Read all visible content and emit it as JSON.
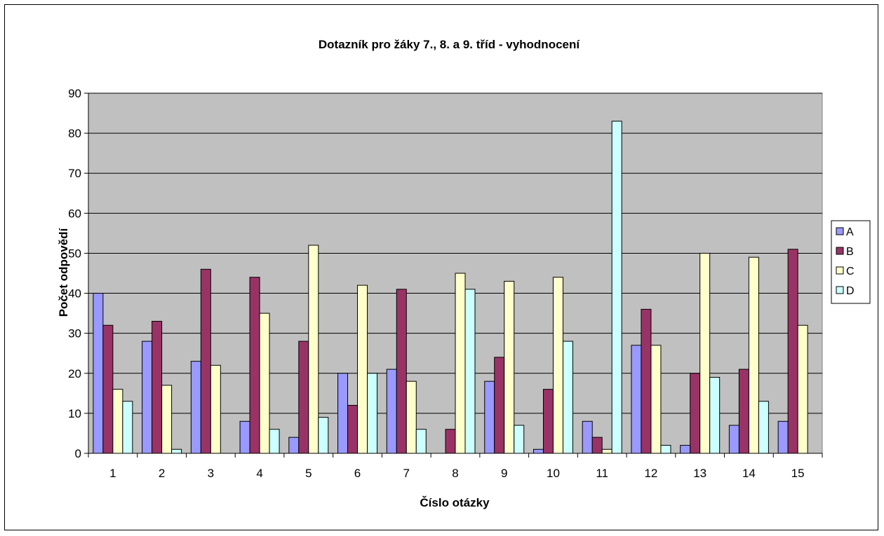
{
  "chart_data": {
    "type": "bar",
    "title": "Dotazník pro žáky 7., 8. a 9. tříd - vyhodnocení",
    "xlabel": "Číslo otázky",
    "ylabel": "Počet odpovědí",
    "ylim": [
      0,
      90
    ],
    "yticks": [
      "0",
      "10",
      "20",
      "30",
      "40",
      "50",
      "60",
      "70",
      "80",
      "90"
    ],
    "categories": [
      "1",
      "2",
      "3",
      "4",
      "5",
      "6",
      "7",
      "8",
      "9",
      "10",
      "11",
      "12",
      "13",
      "14",
      "15"
    ],
    "series": [
      {
        "name": "A",
        "color": "#9999ff",
        "values": [
          40,
          28,
          23,
          8,
          4,
          20,
          21,
          0,
          18,
          1,
          8,
          27,
          2,
          7,
          8
        ]
      },
      {
        "name": "B",
        "color": "#993366",
        "values": [
          32,
          33,
          46,
          44,
          28,
          12,
          41,
          6,
          24,
          16,
          4,
          36,
          20,
          21,
          51
        ]
      },
      {
        "name": "C",
        "color": "#ffffcc",
        "values": [
          16,
          17,
          22,
          35,
          52,
          42,
          18,
          45,
          43,
          44,
          1,
          27,
          50,
          49,
          32
        ]
      },
      {
        "name": "D",
        "color": "#ccffff",
        "values": [
          13,
          1,
          0,
          6,
          9,
          20,
          6,
          41,
          7,
          28,
          83,
          2,
          19,
          13,
          0
        ]
      }
    ],
    "plot_background": "#c0c0c0",
    "grid": true,
    "legend_position": "right"
  }
}
